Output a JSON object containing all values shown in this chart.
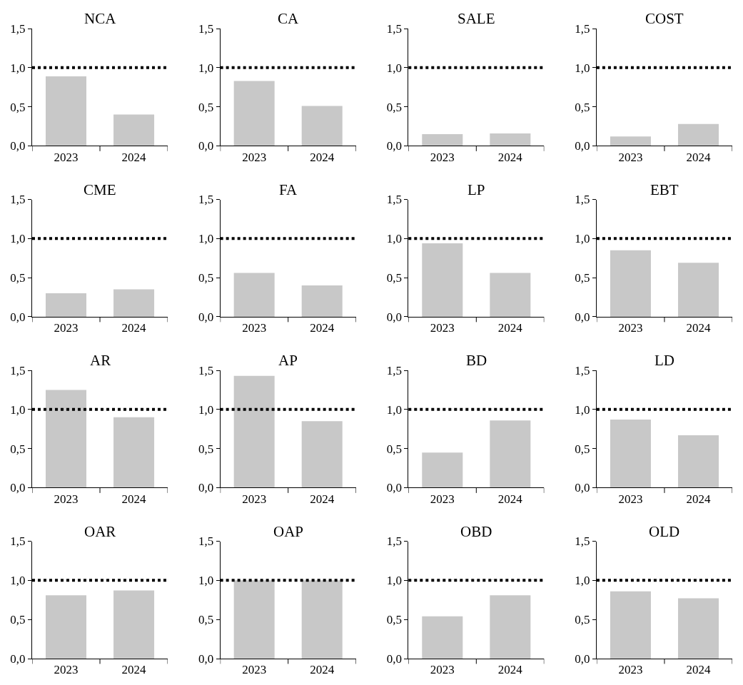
{
  "chart_data": [
    {
      "type": "bar",
      "title": "NCA",
      "categories": [
        "2023",
        "2024"
      ],
      "values": [
        0.89,
        0.4
      ],
      "color": "#c8c8c8",
      "ylim": [
        0,
        1.5
      ],
      "yticks": [
        {
          "value": 0,
          "label": "0,0"
        },
        {
          "value": 0.5,
          "label": "0,5"
        },
        {
          "value": 1,
          "label": "1,0"
        },
        {
          "value": 1.5,
          "label": "1,5"
        }
      ],
      "ref_lines": [
        {
          "axis": "y",
          "value": 1,
          "color": "#000000",
          "line_style": "dotted"
        }
      ]
    },
    {
      "type": "bar",
      "title": "CA",
      "categories": [
        "2023",
        "2024"
      ],
      "values": [
        0.83,
        0.51
      ],
      "color": "#c8c8c8",
      "ylim": [
        0,
        1.5
      ],
      "yticks": [
        {
          "value": 0,
          "label": "0,0"
        },
        {
          "value": 0.5,
          "label": "0,5"
        },
        {
          "value": 1,
          "label": "1,0"
        },
        {
          "value": 1.5,
          "label": "1,5"
        }
      ],
      "ref_lines": [
        {
          "axis": "y",
          "value": 1,
          "color": "#000000",
          "line_style": "dotted"
        }
      ]
    },
    {
      "type": "bar",
      "title": "SALE",
      "categories": [
        "2023",
        "2024"
      ],
      "values": [
        0.15,
        0.16
      ],
      "color": "#c8c8c8",
      "ylim": [
        0,
        1.5
      ],
      "yticks": [
        {
          "value": 0,
          "label": "0,0"
        },
        {
          "value": 0.5,
          "label": "0,5"
        },
        {
          "value": 1,
          "label": "1,0"
        },
        {
          "value": 1.5,
          "label": "1,5"
        }
      ],
      "ref_lines": [
        {
          "axis": "y",
          "value": 1,
          "color": "#000000",
          "line_style": "dotted"
        }
      ]
    },
    {
      "type": "bar",
      "title": "COST",
      "categories": [
        "2023",
        "2024"
      ],
      "values": [
        0.12,
        0.28
      ],
      "color": "#c8c8c8",
      "ylim": [
        0,
        1.5
      ],
      "yticks": [
        {
          "value": 0,
          "label": "0,0"
        },
        {
          "value": 0.5,
          "label": "0,5"
        },
        {
          "value": 1,
          "label": "1,0"
        },
        {
          "value": 1.5,
          "label": "1,5"
        }
      ],
      "ref_lines": [
        {
          "axis": "y",
          "value": 1,
          "color": "#000000",
          "line_style": "dotted"
        }
      ]
    },
    {
      "type": "bar",
      "title": "CME",
      "categories": [
        "2023",
        "2024"
      ],
      "values": [
        0.3,
        0.35
      ],
      "color": "#c8c8c8",
      "ylim": [
        0,
        1.5
      ],
      "yticks": [
        {
          "value": 0,
          "label": "0,0"
        },
        {
          "value": 0.5,
          "label": "0,5"
        },
        {
          "value": 1,
          "label": "1,0"
        },
        {
          "value": 1.5,
          "label": "1,5"
        }
      ],
      "ref_lines": [
        {
          "axis": "y",
          "value": 1,
          "color": "#000000",
          "line_style": "dotted"
        }
      ]
    },
    {
      "type": "bar",
      "title": "FA",
      "categories": [
        "2023",
        "2024"
      ],
      "values": [
        0.56,
        0.4
      ],
      "color": "#c8c8c8",
      "ylim": [
        0,
        1.5
      ],
      "yticks": [
        {
          "value": 0,
          "label": "0,0"
        },
        {
          "value": 0.5,
          "label": "0,5"
        },
        {
          "value": 1,
          "label": "1,0"
        },
        {
          "value": 1.5,
          "label": "1,5"
        }
      ],
      "ref_lines": [
        {
          "axis": "y",
          "value": 1,
          "color": "#000000",
          "line_style": "dotted"
        }
      ]
    },
    {
      "type": "bar",
      "title": "LP",
      "categories": [
        "2023",
        "2024"
      ],
      "values": [
        0.94,
        0.56
      ],
      "color": "#c8c8c8",
      "ylim": [
        0,
        1.5
      ],
      "yticks": [
        {
          "value": 0,
          "label": "0,0"
        },
        {
          "value": 0.5,
          "label": "0,5"
        },
        {
          "value": 1,
          "label": "1,0"
        },
        {
          "value": 1.5,
          "label": "1,5"
        }
      ],
      "ref_lines": [
        {
          "axis": "y",
          "value": 1,
          "color": "#000000",
          "line_style": "dotted"
        }
      ]
    },
    {
      "type": "bar",
      "title": "EBT",
      "categories": [
        "2023",
        "2024"
      ],
      "values": [
        0.85,
        0.69
      ],
      "color": "#c8c8c8",
      "ylim": [
        0,
        1.5
      ],
      "yticks": [
        {
          "value": 0,
          "label": "0,0"
        },
        {
          "value": 0.5,
          "label": "0,5"
        },
        {
          "value": 1,
          "label": "1,0"
        },
        {
          "value": 1.5,
          "label": "1,5"
        }
      ],
      "ref_lines": [
        {
          "axis": "y",
          "value": 1,
          "color": "#000000",
          "line_style": "dotted"
        }
      ]
    },
    {
      "type": "bar",
      "title": "AR",
      "categories": [
        "2023",
        "2024"
      ],
      "values": [
        1.25,
        0.9
      ],
      "color": "#c8c8c8",
      "ylim": [
        0,
        1.5
      ],
      "yticks": [
        {
          "value": 0,
          "label": "0,0"
        },
        {
          "value": 0.5,
          "label": "0,5"
        },
        {
          "value": 1,
          "label": "1,0"
        },
        {
          "value": 1.5,
          "label": "1,5"
        }
      ],
      "ref_lines": [
        {
          "axis": "y",
          "value": 1,
          "color": "#000000",
          "line_style": "dotted"
        }
      ]
    },
    {
      "type": "bar",
      "title": "AP",
      "categories": [
        "2023",
        "2024"
      ],
      "values": [
        1.43,
        0.85
      ],
      "color": "#c8c8c8",
      "ylim": [
        0,
        1.5
      ],
      "yticks": [
        {
          "value": 0,
          "label": "0,0"
        },
        {
          "value": 0.5,
          "label": "0,5"
        },
        {
          "value": 1,
          "label": "1,0"
        },
        {
          "value": 1.5,
          "label": "1,5"
        }
      ],
      "ref_lines": [
        {
          "axis": "y",
          "value": 1,
          "color": "#000000",
          "line_style": "dotted"
        }
      ]
    },
    {
      "type": "bar",
      "title": "BD",
      "categories": [
        "2023",
        "2024"
      ],
      "values": [
        0.45,
        0.86
      ],
      "color": "#c8c8c8",
      "ylim": [
        0,
        1.5
      ],
      "yticks": [
        {
          "value": 0,
          "label": "0,0"
        },
        {
          "value": 0.5,
          "label": "0,5"
        },
        {
          "value": 1,
          "label": "1,0"
        },
        {
          "value": 1.5,
          "label": "1,5"
        }
      ],
      "ref_lines": [
        {
          "axis": "y",
          "value": 1,
          "color": "#000000",
          "line_style": "dotted"
        }
      ]
    },
    {
      "type": "bar",
      "title": "LD",
      "categories": [
        "2023",
        "2024"
      ],
      "values": [
        0.87,
        0.67
      ],
      "color": "#c8c8c8",
      "ylim": [
        0,
        1.5
      ],
      "yticks": [
        {
          "value": 0,
          "label": "0,0"
        },
        {
          "value": 0.5,
          "label": "0,5"
        },
        {
          "value": 1,
          "label": "1,0"
        },
        {
          "value": 1.5,
          "label": "1,5"
        }
      ],
      "ref_lines": [
        {
          "axis": "y",
          "value": 1,
          "color": "#000000",
          "line_style": "dotted"
        }
      ]
    },
    {
      "type": "bar",
      "title": "OAR",
      "categories": [
        "2023",
        "2024"
      ],
      "values": [
        0.81,
        0.87
      ],
      "color": "#c8c8c8",
      "ylim": [
        0,
        1.5
      ],
      "yticks": [
        {
          "value": 0,
          "label": "0,0"
        },
        {
          "value": 0.5,
          "label": "0,5"
        },
        {
          "value": 1,
          "label": "1,0"
        },
        {
          "value": 1.5,
          "label": "1,5"
        }
      ],
      "ref_lines": [
        {
          "axis": "y",
          "value": 1,
          "color": "#000000",
          "line_style": "dotted"
        }
      ]
    },
    {
      "type": "bar",
      "title": "OAP",
      "categories": [
        "2023",
        "2024"
      ],
      "values": [
        1.0,
        1.0
      ],
      "color": "#c8c8c8",
      "ylim": [
        0,
        1.5
      ],
      "yticks": [
        {
          "value": 0,
          "label": "0,0"
        },
        {
          "value": 0.5,
          "label": "0,5"
        },
        {
          "value": 1,
          "label": "1,0"
        },
        {
          "value": 1.5,
          "label": "1,5"
        }
      ],
      "ref_lines": [
        {
          "axis": "y",
          "value": 1,
          "color": "#000000",
          "line_style": "dotted"
        }
      ]
    },
    {
      "type": "bar",
      "title": "OBD",
      "categories": [
        "2023",
        "2024"
      ],
      "values": [
        0.54,
        0.81
      ],
      "color": "#c8c8c8",
      "ylim": [
        0,
        1.5
      ],
      "yticks": [
        {
          "value": 0,
          "label": "0,0"
        },
        {
          "value": 0.5,
          "label": "0,5"
        },
        {
          "value": 1,
          "label": "1,0"
        },
        {
          "value": 1.5,
          "label": "1,5"
        }
      ],
      "ref_lines": [
        {
          "axis": "y",
          "value": 1,
          "color": "#000000",
          "line_style": "dotted"
        }
      ]
    },
    {
      "type": "bar",
      "title": "OLD",
      "categories": [
        "2023",
        "2024"
      ],
      "values": [
        0.86,
        0.77
      ],
      "color": "#c8c8c8",
      "ylim": [
        0,
        1.5
      ],
      "yticks": [
        {
          "value": 0,
          "label": "0,0"
        },
        {
          "value": 0.5,
          "label": "0,5"
        },
        {
          "value": 1,
          "label": "1,0"
        },
        {
          "value": 1.5,
          "label": "1,5"
        }
      ],
      "ref_lines": [
        {
          "axis": "y",
          "value": 1,
          "color": "#000000",
          "line_style": "dotted"
        }
      ]
    }
  ]
}
